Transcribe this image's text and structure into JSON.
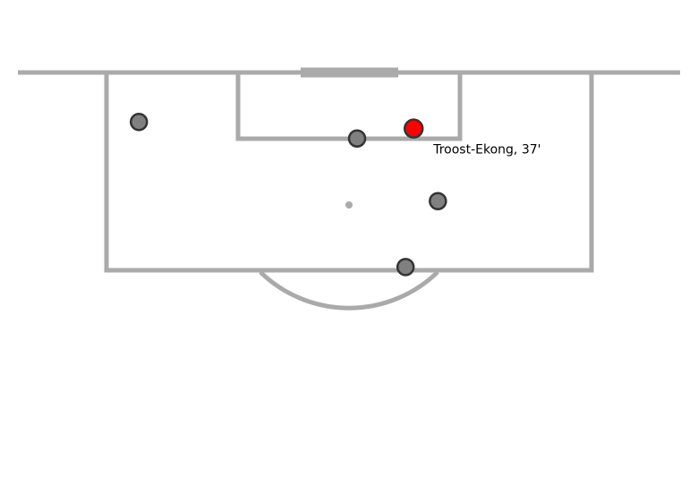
{
  "chart_data": {
    "type": "scatter",
    "title": "",
    "xlabel": "",
    "ylabel": "",
    "grid": false,
    "colors": {
      "pitch_lines": "#aaaaaa",
      "shot_default": "#808080",
      "shot_highlight": "#ff0000",
      "shot_edge": "#333333",
      "background": "#ffffff"
    },
    "xlim": [
      50,
      100
    ],
    "ylim": [
      0,
      100
    ],
    "shots": [
      {
        "x": 92.5,
        "y": 24,
        "highlight": false,
        "label": ""
      },
      {
        "x": 90.0,
        "y": 51,
        "highlight": false,
        "label": ""
      },
      {
        "x": 91.5,
        "y": 58,
        "highlight": true,
        "label": "Troost-Ekong, 37'"
      },
      {
        "x": 80.5,
        "y": 61,
        "highlight": false,
        "label": ""
      },
      {
        "x": 70.5,
        "y": 57,
        "highlight": false,
        "label": ""
      }
    ]
  }
}
